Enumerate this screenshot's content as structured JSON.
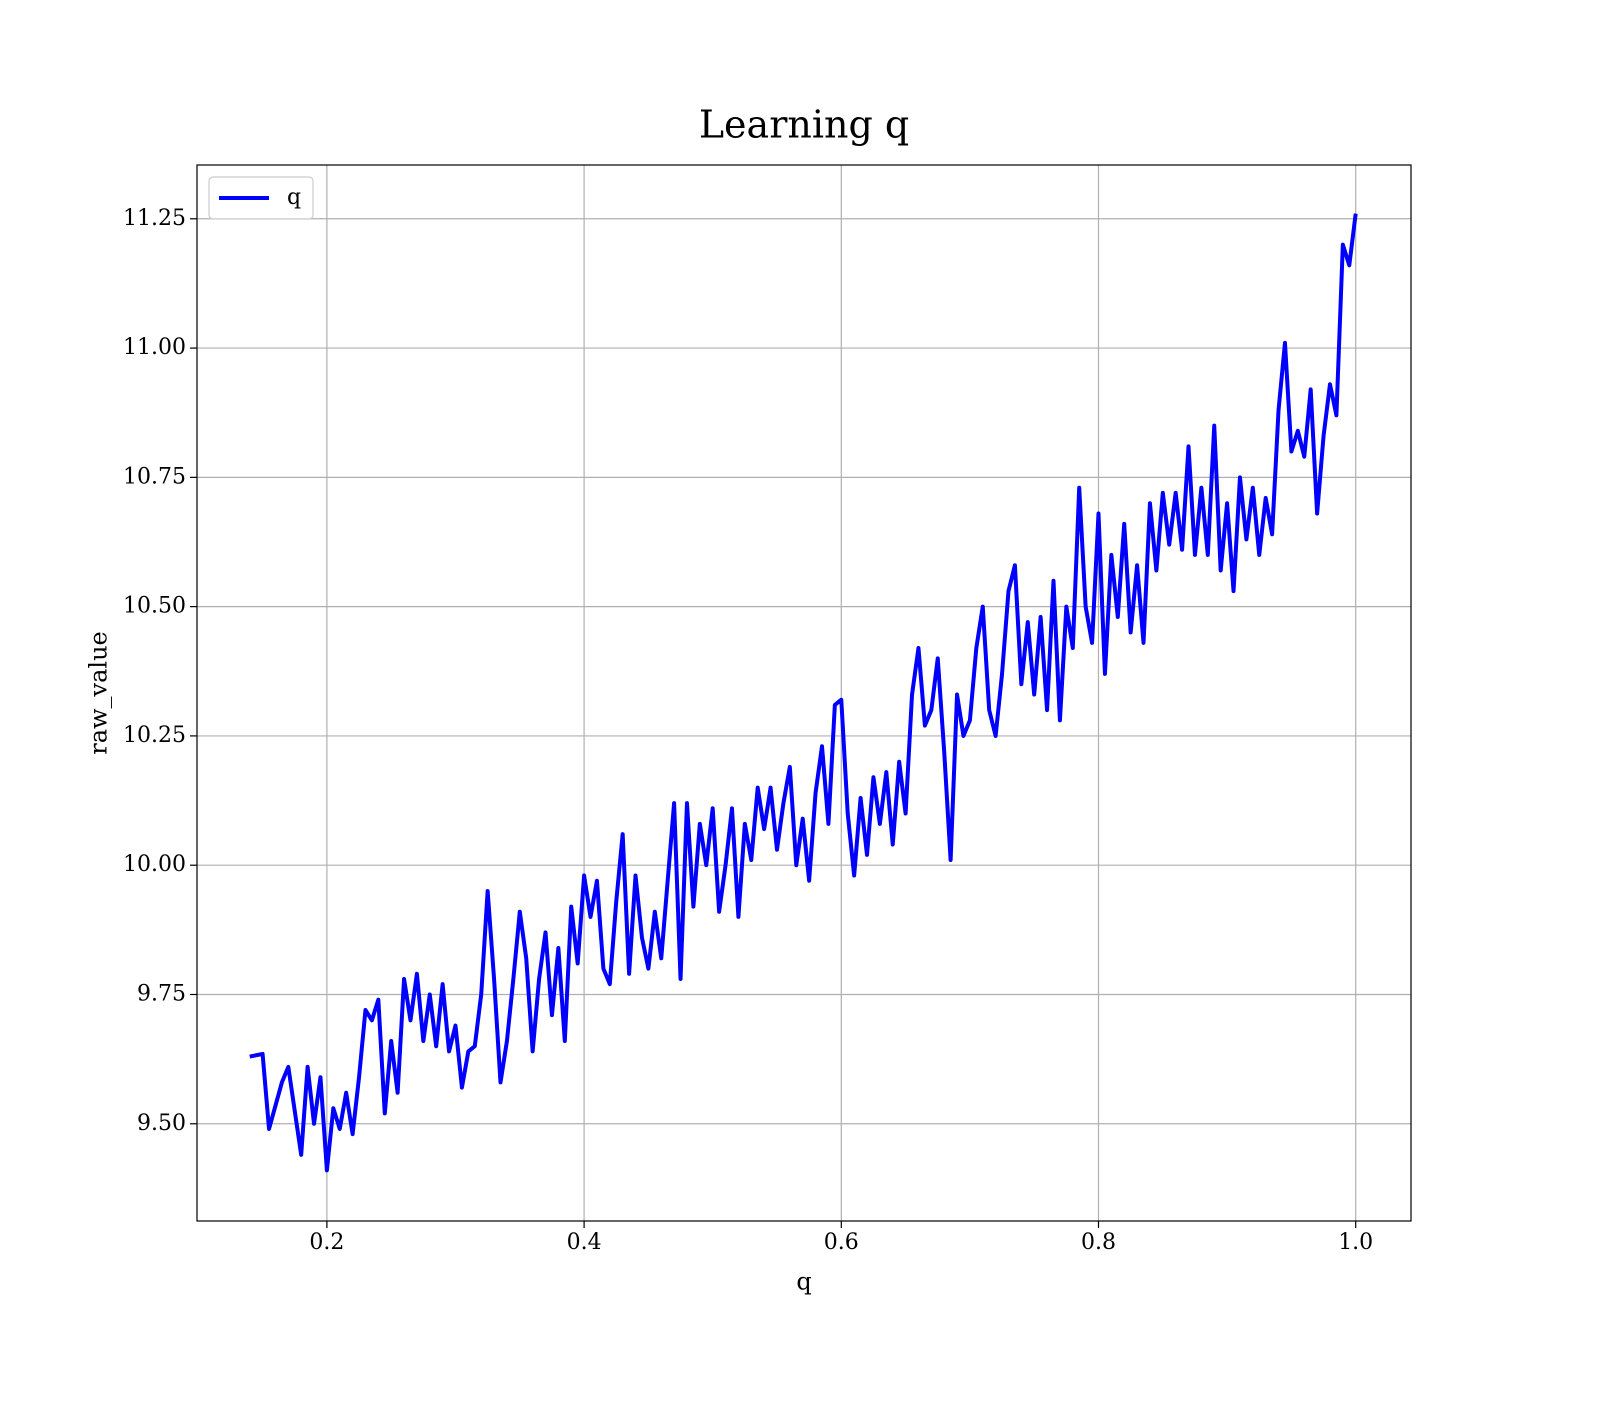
{
  "chart_data": {
    "type": "line",
    "title": "Learning q",
    "xlabel": "q",
    "ylabel": "raw_value",
    "x": [
      0.14,
      0.15,
      0.155,
      0.165,
      0.17,
      0.18,
      0.185,
      0.19,
      0.195,
      0.2,
      0.205,
      0.21,
      0.215,
      0.22,
      0.225,
      0.23,
      0.235,
      0.24,
      0.245,
      0.25,
      0.255,
      0.26,
      0.265,
      0.27,
      0.275,
      0.28,
      0.285,
      0.29,
      0.295,
      0.3,
      0.305,
      0.31,
      0.315,
      0.32,
      0.325,
      0.33,
      0.335,
      0.34,
      0.345,
      0.35,
      0.355,
      0.36,
      0.365,
      0.37,
      0.375,
      0.38,
      0.385,
      0.39,
      0.395,
      0.4,
      0.405,
      0.41,
      0.415,
      0.42,
      0.425,
      0.43,
      0.435,
      0.44,
      0.445,
      0.45,
      0.455,
      0.46,
      0.465,
      0.47,
      0.475,
      0.48,
      0.485,
      0.49,
      0.495,
      0.5,
      0.505,
      0.51,
      0.515,
      0.52,
      0.525,
      0.53,
      0.535,
      0.54,
      0.545,
      0.55,
      0.555,
      0.56,
      0.565,
      0.57,
      0.575,
      0.58,
      0.585,
      0.59,
      0.595,
      0.6,
      0.605,
      0.61,
      0.615,
      0.62,
      0.625,
      0.63,
      0.635,
      0.64,
      0.645,
      0.65,
      0.655,
      0.66,
      0.665,
      0.67,
      0.675,
      0.68,
      0.685,
      0.69,
      0.695,
      0.7,
      0.705,
      0.71,
      0.715,
      0.72,
      0.725,
      0.73,
      0.735,
      0.74,
      0.745,
      0.75,
      0.755,
      0.76,
      0.765,
      0.77,
      0.775,
      0.78,
      0.785,
      0.79,
      0.795,
      0.8,
      0.805,
      0.81,
      0.815,
      0.82,
      0.825,
      0.83,
      0.835,
      0.84,
      0.845,
      0.85,
      0.855,
      0.86,
      0.865,
      0.87,
      0.875,
      0.88,
      0.885,
      0.89,
      0.895,
      0.9,
      0.905,
      0.91,
      0.915,
      0.92,
      0.925,
      0.93,
      0.935,
      0.94,
      0.945,
      0.95,
      0.955,
      0.96,
      0.965,
      0.97,
      0.975,
      0.98,
      0.985,
      0.99,
      0.995,
      1.0
    ],
    "series": [
      {
        "name": "q",
        "color": "#0000ff",
        "values": [
          9.63,
          9.635,
          9.49,
          9.58,
          9.61,
          9.44,
          9.61,
          9.5,
          9.59,
          9.41,
          9.53,
          9.49,
          9.56,
          9.48,
          9.59,
          9.72,
          9.7,
          9.74,
          9.52,
          9.66,
          9.56,
          9.78,
          9.7,
          9.79,
          9.66,
          9.75,
          9.65,
          9.77,
          9.64,
          9.69,
          9.57,
          9.64,
          9.65,
          9.75,
          9.95,
          9.78,
          9.58,
          9.66,
          9.78,
          9.91,
          9.82,
          9.64,
          9.78,
          9.87,
          9.71,
          9.84,
          9.66,
          9.92,
          9.81,
          9.98,
          9.9,
          9.97,
          9.8,
          9.77,
          9.93,
          10.06,
          9.79,
          9.98,
          9.86,
          9.8,
          9.91,
          9.82,
          9.97,
          10.12,
          9.78,
          10.12,
          9.92,
          10.08,
          10.0,
          10.11,
          9.91,
          10.0,
          10.11,
          9.9,
          10.08,
          10.01,
          10.15,
          10.07,
          10.15,
          10.03,
          10.12,
          10.19,
          10.0,
          10.09,
          9.97,
          10.14,
          10.23,
          10.08,
          10.31,
          10.32,
          10.1,
          9.98,
          10.13,
          10.02,
          10.17,
          10.08,
          10.18,
          10.04,
          10.2,
          10.1,
          10.33,
          10.42,
          10.27,
          10.3,
          10.4,
          10.22,
          10.01,
          10.33,
          10.25,
          10.28,
          10.42,
          10.5,
          10.3,
          10.25,
          10.37,
          10.53,
          10.58,
          10.35,
          10.47,
          10.33,
          10.48,
          10.3,
          10.55,
          10.28,
          10.5,
          10.42,
          10.73,
          10.5,
          10.43,
          10.68,
          10.37,
          10.6,
          10.48,
          10.66,
          10.45,
          10.58,
          10.43,
          10.7,
          10.57,
          10.72,
          10.62,
          10.72,
          10.61,
          10.81,
          10.6,
          10.73,
          10.6,
          10.85,
          10.57,
          10.7,
          10.53,
          10.75,
          10.63,
          10.73,
          10.6,
          10.71,
          10.64,
          10.88,
          11.01,
          10.8,
          10.84,
          10.79,
          10.92,
          10.68,
          10.83,
          10.93,
          10.87,
          11.2,
          11.16,
          11.26
        ]
      }
    ],
    "xlim": [
      0.099,
      1.043
    ],
    "xticks": [
      0.2,
      0.4,
      0.6,
      0.8,
      {
        "value": 1.0,
        "label": "1.0"
      }
    ],
    "ylim": [
      9.312,
      11.354
    ],
    "yticks": [
      {
        "value": 9.5,
        "label": "9.50"
      },
      9.75,
      {
        "value": 10.0,
        "label": "10.00"
      },
      10.25,
      {
        "value": 10.5,
        "label": "10.50"
      },
      10.75,
      {
        "value": 11.0,
        "label": "11.00"
      },
      11.25
    ],
    "grid": true,
    "legend": "upper left"
  }
}
